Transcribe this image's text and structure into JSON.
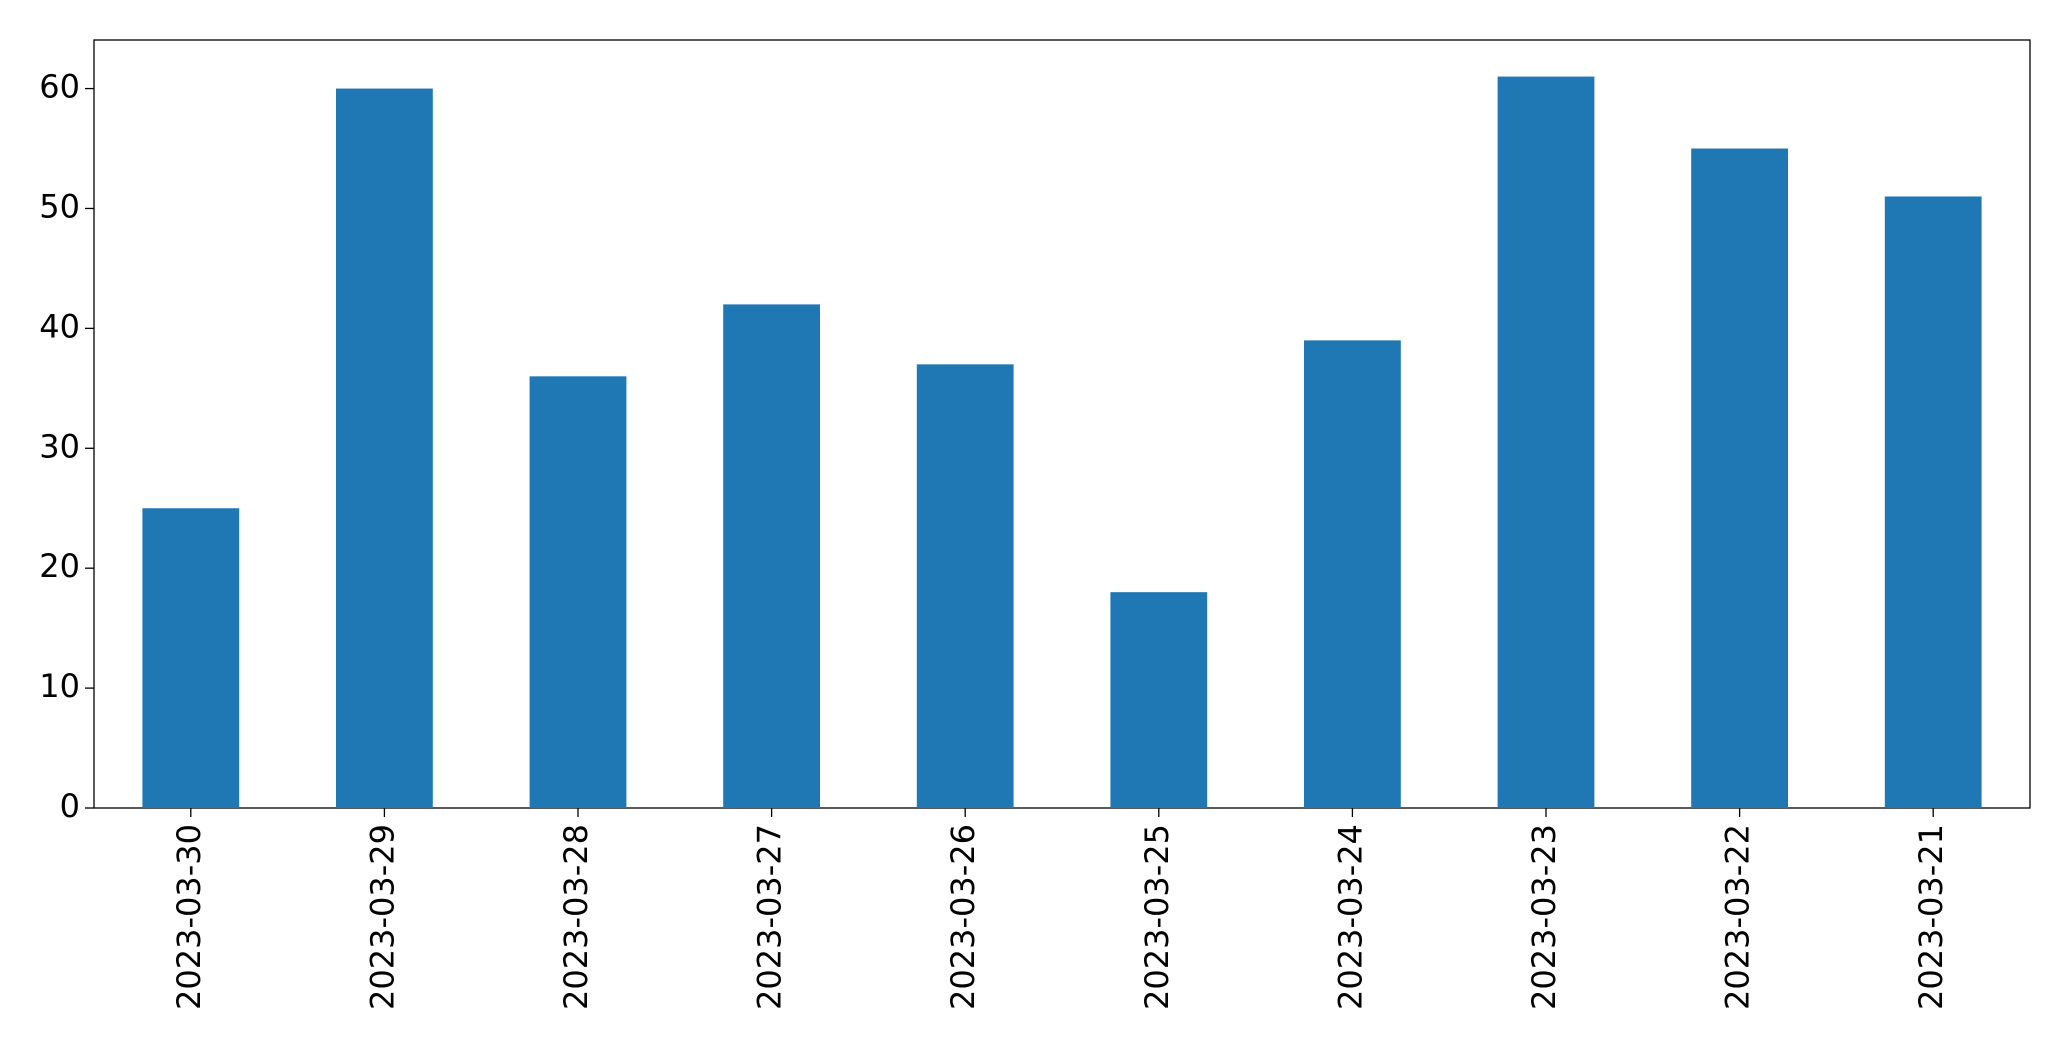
{
  "chart_data": {
    "type": "bar",
    "categories": [
      "2023-03-30",
      "2023-03-29",
      "2023-03-28",
      "2023-03-27",
      "2023-03-26",
      "2023-03-25",
      "2023-03-24",
      "2023-03-23",
      "2023-03-22",
      "2023-03-21"
    ],
    "values": [
      25,
      60,
      36,
      42,
      37,
      18,
      39,
      61,
      55,
      51
    ],
    "color": "#1f77b4",
    "ylim": [
      0,
      64.05
    ],
    "yticks": [
      0,
      10,
      20,
      30,
      40,
      50,
      60
    ],
    "grid": false
  }
}
